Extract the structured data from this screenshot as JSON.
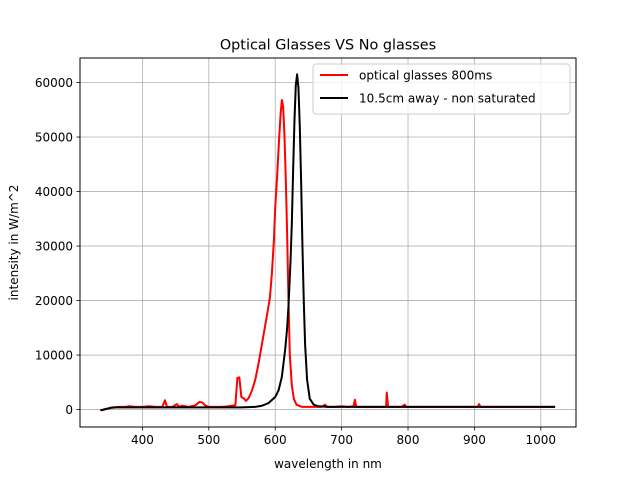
{
  "chart_data": {
    "type": "line",
    "title": "Optical Glasses VS No glasses",
    "xlabel": "wavelength in nm",
    "ylabel": "intensity in W/m^2",
    "xlim": [
      306,
      1053
    ],
    "ylim": [
      -3200,
      64500
    ],
    "xticks": [
      400,
      500,
      600,
      700,
      800,
      900,
      1000
    ],
    "yticks": [
      0,
      10000,
      20000,
      30000,
      40000,
      50000,
      60000
    ],
    "grid": true,
    "legend_position": "top-right",
    "series": [
      {
        "name": "optical glasses 800ms",
        "color": "#ff0000",
        "points": [
          [
            340,
            -100
          ],
          [
            348,
            200
          ],
          [
            355,
            400
          ],
          [
            365,
            500
          ],
          [
            375,
            500
          ],
          [
            380,
            600
          ],
          [
            390,
            500
          ],
          [
            400,
            500
          ],
          [
            410,
            600
          ],
          [
            420,
            500
          ],
          [
            430,
            500
          ],
          [
            434,
            1700
          ],
          [
            437,
            500
          ],
          [
            445,
            500
          ],
          [
            452,
            1000
          ],
          [
            455,
            500
          ],
          [
            460,
            700
          ],
          [
            470,
            500
          ],
          [
            480,
            800
          ],
          [
            486,
            1400
          ],
          [
            490,
            1300
          ],
          [
            495,
            700
          ],
          [
            500,
            500
          ],
          [
            510,
            500
          ],
          [
            520,
            500
          ],
          [
            530,
            600
          ],
          [
            540,
            800
          ],
          [
            543,
            5800
          ],
          [
            546,
            5900
          ],
          [
            549,
            2300
          ],
          [
            553,
            2000
          ],
          [
            556,
            1600
          ],
          [
            560,
            2100
          ],
          [
            565,
            3500
          ],
          [
            570,
            5500
          ],
          [
            575,
            8500
          ],
          [
            580,
            12000
          ],
          [
            585,
            15500
          ],
          [
            590,
            19000
          ],
          [
            592,
            20500
          ],
          [
            595,
            25000
          ],
          [
            598,
            31000
          ],
          [
            600,
            37000
          ],
          [
            603,
            43000
          ],
          [
            606,
            50000
          ],
          [
            608,
            54000
          ],
          [
            610,
            56800
          ],
          [
            612,
            55500
          ],
          [
            614,
            50000
          ],
          [
            616,
            42000
          ],
          [
            618,
            32000
          ],
          [
            620,
            20000
          ],
          [
            622,
            10000
          ],
          [
            625,
            4500
          ],
          [
            628,
            2000
          ],
          [
            632,
            900
          ],
          [
            640,
            500
          ],
          [
            650,
            500
          ],
          [
            660,
            500
          ],
          [
            670,
            500
          ],
          [
            675,
            900
          ],
          [
            678,
            500
          ],
          [
            690,
            500
          ],
          [
            700,
            600
          ],
          [
            710,
            500
          ],
          [
            718,
            600
          ],
          [
            720,
            1800
          ],
          [
            722,
            500
          ],
          [
            730,
            500
          ],
          [
            740,
            500
          ],
          [
            750,
            500
          ],
          [
            760,
            500
          ],
          [
            767,
            500
          ],
          [
            768,
            3100
          ],
          [
            770,
            500
          ],
          [
            780,
            500
          ],
          [
            790,
            500
          ],
          [
            795,
            900
          ],
          [
            797,
            500
          ],
          [
            810,
            500
          ],
          [
            830,
            500
          ],
          [
            850,
            500
          ],
          [
            870,
            500
          ],
          [
            890,
            500
          ],
          [
            905,
            500
          ],
          [
            907,
            1000
          ],
          [
            909,
            500
          ],
          [
            930,
            500
          ],
          [
            950,
            500
          ],
          [
            970,
            500
          ],
          [
            990,
            500
          ],
          [
            1010,
            500
          ],
          [
            1020,
            500
          ]
        ]
      },
      {
        "name": "10.5cm away - non saturated",
        "color": "#000000",
        "points": [
          [
            338,
            -100
          ],
          [
            345,
            100
          ],
          [
            352,
            300
          ],
          [
            360,
            400
          ],
          [
            380,
            400
          ],
          [
            400,
            400
          ],
          [
            450,
            400
          ],
          [
            500,
            400
          ],
          [
            550,
            400
          ],
          [
            570,
            500
          ],
          [
            580,
            700
          ],
          [
            590,
            1200
          ],
          [
            600,
            2300
          ],
          [
            605,
            3500
          ],
          [
            610,
            6000
          ],
          [
            615,
            11000
          ],
          [
            618,
            15000
          ],
          [
            620,
            19000
          ],
          [
            623,
            27000
          ],
          [
            625,
            34000
          ],
          [
            627,
            44000
          ],
          [
            629,
            53000
          ],
          [
            631,
            59500
          ],
          [
            633,
            61500
          ],
          [
            635,
            59000
          ],
          [
            637,
            52000
          ],
          [
            639,
            42000
          ],
          [
            641,
            30000
          ],
          [
            643,
            20000
          ],
          [
            645,
            12000
          ],
          [
            648,
            5500
          ],
          [
            652,
            2000
          ],
          [
            658,
            900
          ],
          [
            665,
            600
          ],
          [
            680,
            500
          ],
          [
            700,
            500
          ],
          [
            750,
            500
          ],
          [
            800,
            500
          ],
          [
            850,
            500
          ],
          [
            900,
            500
          ],
          [
            950,
            500
          ],
          [
            1000,
            500
          ],
          [
            1020,
            500
          ]
        ]
      }
    ]
  }
}
